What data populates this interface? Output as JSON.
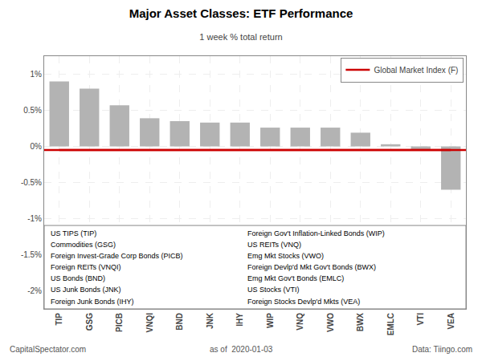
{
  "chart_data": {
    "type": "bar",
    "title": "Major Asset Classes: ETF Performance",
    "subtitle": "1 week % total return",
    "categories": [
      "TIP",
      "GSG",
      "PICB",
      "VNQI",
      "BND",
      "JNK",
      "IHY",
      "WIP",
      "VNQ",
      "VWO",
      "BWX",
      "EMLC",
      "VTI",
      "VEA"
    ],
    "values": [
      0.9,
      0.8,
      0.57,
      0.39,
      0.35,
      0.33,
      0.33,
      0.26,
      0.26,
      0.26,
      0.19,
      0.03,
      -0.06,
      -0.6
    ],
    "color": "#b3b3b3",
    "reference_line": {
      "name": "Global Market Index (F)",
      "value": -0.05,
      "color": "#cc0000"
    },
    "ylim": [
      -2.25,
      1.25
    ],
    "yticks": [
      {
        "value": -2.0,
        "label": "-2%"
      },
      {
        "value": -1.5,
        "label": "-1.5%"
      },
      {
        "value": -1.0,
        "label": "-1%"
      },
      {
        "value": -0.5,
        "label": "-0.5%"
      },
      {
        "value": 0.0,
        "label": "0%"
      },
      {
        "value": 0.5,
        "label": "0.5%"
      },
      {
        "value": 1.0,
        "label": "1%"
      }
    ],
    "grid": true,
    "legend": "upper right",
    "footer": [
      "CapitalSpectator.com",
      "as of  2020-01-03",
      "Data: Tiingo.com"
    ],
    "notes_left": [
      "US TIPS (TIP)",
      "Commodities (GSG)",
      "Foreign Invest-Grade Corp Bonds (PICB)",
      "Foreign REITs (VNQI)",
      "US Bonds (BND)",
      "US Junk Bonds (JNK)",
      "Foreign Junk Bonds (IHY)"
    ],
    "notes_right": [
      "Foreign Gov't Inflation-Linked Bonds (WIP)",
      "US REITs (VNQ)",
      "Emg Mkt Stocks (VWO)",
      "Foreign Devlp'd Mkt Gov't Bonds (BWX)",
      "Emg Mkt Gov't Bonds (EMLC)",
      "US Stocks (VTI)",
      "Foreign Stocks Devlp'd Mkts (VEA)"
    ]
  }
}
